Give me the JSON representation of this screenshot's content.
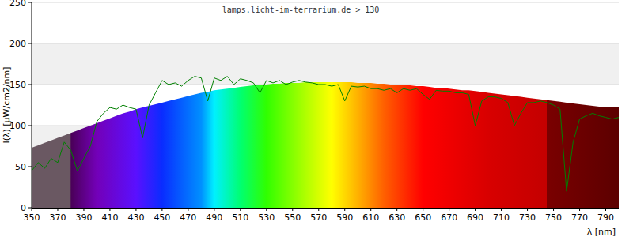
{
  "chart_data": {
    "type": "line",
    "title": "lamps.licht-im-terrarium.de > 130",
    "x_label": "λ [nm]",
    "y_label": "I(λ) [µW/cm2/nm]",
    "x": [
      350,
      355,
      360,
      365,
      370,
      375,
      380,
      385,
      390,
      395,
      400,
      405,
      410,
      415,
      420,
      425,
      430,
      435,
      440,
      445,
      450,
      455,
      460,
      465,
      470,
      475,
      480,
      485,
      490,
      495,
      500,
      505,
      510,
      515,
      520,
      525,
      530,
      535,
      540,
      545,
      550,
      555,
      560,
      565,
      570,
      575,
      580,
      585,
      590,
      595,
      600,
      605,
      610,
      615,
      620,
      625,
      630,
      635,
      640,
      645,
      650,
      655,
      660,
      665,
      670,
      675,
      680,
      685,
      690,
      695,
      700,
      705,
      710,
      715,
      720,
      725,
      730,
      735,
      740,
      745,
      750,
      755,
      760,
      765,
      770,
      775,
      780,
      785,
      790,
      795,
      800
    ],
    "series": [
      {
        "color": "#008000",
        "values": [
          45,
          55,
          48,
          60,
          55,
          80,
          70,
          45,
          60,
          75,
          105,
          115,
          122,
          120,
          125,
          122,
          120,
          85,
          125,
          140,
          155,
          150,
          152,
          148,
          155,
          160,
          158,
          130,
          158,
          155,
          160,
          150,
          157,
          155,
          152,
          140,
          155,
          152,
          155,
          150,
          153,
          155,
          153,
          152,
          150,
          150,
          148,
          150,
          130,
          148,
          147,
          148,
          145,
          145,
          143,
          145,
          140,
          145,
          143,
          145,
          138,
          132,
          143,
          142,
          142,
          140,
          140,
          138,
          100,
          130,
          135,
          135,
          133,
          128,
          100,
          115,
          128,
          128,
          130,
          128,
          125,
          120,
          20,
          80,
          108,
          112,
          115,
          112,
          110,
          108,
          110
        ]
      },
      {
        "type": "area",
        "values": [
          73,
          76,
          79,
          82,
          85,
          88,
          91,
          94,
          97,
          100,
          103,
          106,
          109,
          112,
          115,
          117,
          120,
          122,
          124,
          126,
          128,
          130,
          132,
          134,
          136,
          138,
          140,
          141,
          143,
          144,
          145,
          146,
          147,
          148,
          149,
          150,
          150,
          151,
          151,
          152,
          152,
          152,
          153,
          153,
          153,
          153,
          153,
          153,
          153,
          153,
          152,
          152,
          152,
          151,
          151,
          150,
          150,
          149,
          149,
          148,
          148,
          147,
          146,
          146,
          145,
          144,
          143,
          143,
          142,
          141,
          140,
          139,
          138,
          137,
          136,
          135,
          134,
          133,
          132,
          131,
          130,
          129,
          128,
          127,
          126,
          125,
          124,
          123,
          122,
          122,
          122
        ]
      }
    ],
    "xlim": [
      350,
      800
    ],
    "ylim": [
      0,
      250
    ],
    "xticks": [
      350,
      370,
      390,
      410,
      430,
      450,
      470,
      490,
      510,
      530,
      550,
      570,
      590,
      610,
      630,
      650,
      670,
      690,
      710,
      730,
      750,
      770,
      790
    ],
    "yticks": [
      0,
      50,
      100,
      150,
      200,
      250
    ],
    "grid": true
  }
}
